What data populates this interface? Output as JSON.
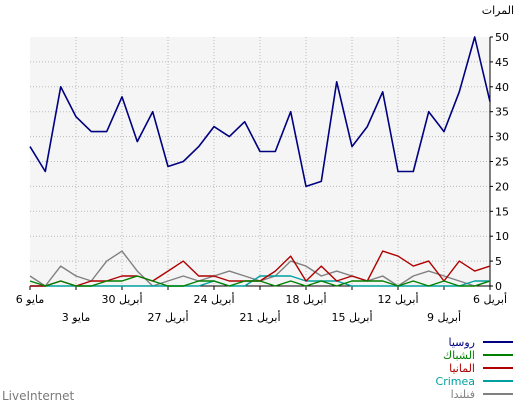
{
  "chart_data": {
    "type": "line",
    "ylabel": "المرات",
    "ylim": [
      0,
      50
    ],
    "yticks": [
      0,
      5,
      10,
      15,
      20,
      25,
      30,
      35,
      40,
      45,
      50
    ],
    "grid": true,
    "legend_position": "bottom-right",
    "x": [
      "6 مايو",
      "5 مايو",
      "4 مايو",
      "3 مايو",
      "2 مايو",
      "1 مايو",
      "30 أبريل",
      "29 أبريل",
      "28 أبريل",
      "27 أبريل",
      "26 أبريل",
      "25 أبريل",
      "24 أبريل",
      "23 أبريل",
      "22 أبريل",
      "21 أبريل",
      "20 أبريل",
      "19 أبريل",
      "18 أبريل",
      "17 أبريل",
      "16 أبريل",
      "15 أبريل",
      "14 أبريل",
      "13 أبريل",
      "12 أبريل",
      "11 أبريل",
      "10 أبريل",
      "9 أبريل",
      "8 أبريل",
      "7 أبريل",
      "6 أبريل"
    ],
    "xtick_labels_upper": [
      {
        "index": 0,
        "label": "6 مايو"
      },
      {
        "index": 6,
        "label": "30 أبريل"
      },
      {
        "index": 12,
        "label": "24 أبريل"
      },
      {
        "index": 18,
        "label": "18 أبريل"
      },
      {
        "index": 24,
        "label": "12 أبريل"
      },
      {
        "index": 30,
        "label": "6 أبريل"
      }
    ],
    "xtick_labels_lower": [
      {
        "index": 3,
        "label": "3 مايو"
      },
      {
        "index": 9,
        "label": "27 أبريل"
      },
      {
        "index": 15,
        "label": "21 أبريل"
      },
      {
        "index": 21,
        "label": "15 أبريل"
      },
      {
        "index": 27,
        "label": "9 أبريل"
      }
    ],
    "series": [
      {
        "name": "روسيا",
        "color": "#000080",
        "values": [
          28,
          23,
          40,
          34,
          31,
          31,
          38,
          29,
          35,
          24,
          25,
          28,
          32,
          30,
          33,
          27,
          27,
          35,
          20,
          21,
          41,
          28,
          32,
          39,
          23,
          23,
          35,
          31,
          39,
          50,
          37
        ]
      },
      {
        "name": "الشباك",
        "color": "#008000",
        "values": [
          1,
          0,
          1,
          0,
          0,
          1,
          1,
          2,
          1,
          0,
          0,
          1,
          1,
          0,
          1,
          1,
          0,
          1,
          0,
          1,
          0,
          1,
          1,
          1,
          0,
          1,
          0,
          1,
          0,
          0,
          1
        ]
      },
      {
        "name": "المانيا",
        "color": "#b00000",
        "values": [
          0,
          0,
          1,
          0,
          1,
          1,
          2,
          2,
          1,
          3,
          5,
          2,
          2,
          1,
          1,
          1,
          3,
          6,
          1,
          4,
          1,
          2,
          1,
          7,
          6,
          4,
          5,
          1,
          5,
          3,
          4
        ]
      },
      {
        "name": "Crimea",
        "color": "#00a0a0",
        "values": [
          0,
          0,
          0,
          0,
          0,
          0,
          0,
          0,
          0,
          0,
          0,
          0,
          1,
          0,
          0,
          2,
          2,
          2,
          1,
          1,
          1,
          0,
          0,
          0,
          0,
          0,
          0,
          0,
          0,
          1,
          1
        ]
      },
      {
        "name": "فنلندا",
        "color": "#808080",
        "values": [
          2,
          0,
          4,
          2,
          1,
          5,
          7,
          3,
          0,
          1,
          2,
          1,
          2,
          3,
          2,
          1,
          2,
          5,
          4,
          2,
          3,
          2,
          1,
          2,
          0,
          2,
          3,
          2,
          1,
          0,
          1
        ]
      }
    ]
  },
  "footer": {
    "credit": "LiveInternet"
  }
}
